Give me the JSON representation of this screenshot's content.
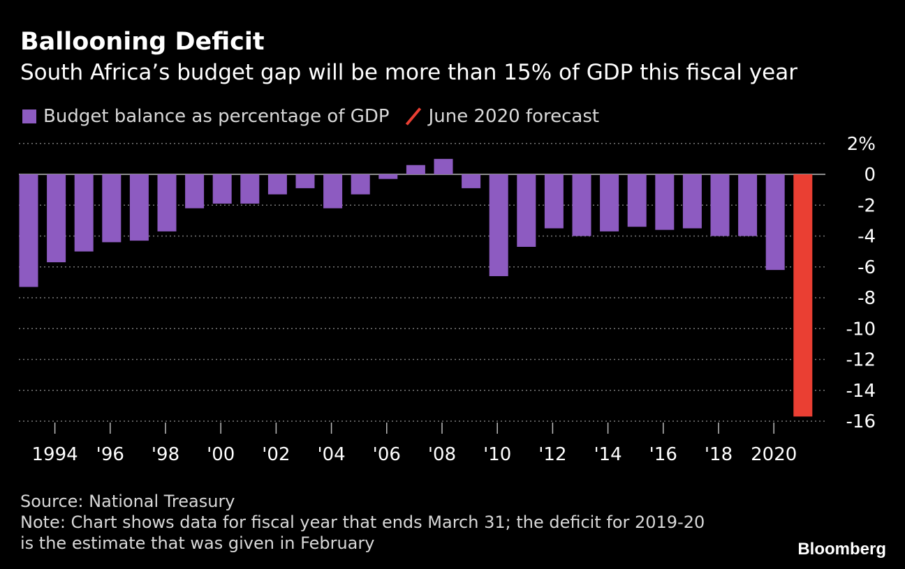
{
  "header": {
    "title": "Ballooning Deficit",
    "subtitle": "South Africa’s budget gap will be more than 15% of GDP this fiscal year"
  },
  "colors": {
    "background": "#000000",
    "budget_balance": "#8d5bc1",
    "forecast": "#ea3f33",
    "gridline": "#7a7a7a"
  },
  "footer": {
    "source": "Source: National Treasury",
    "note_line1": "Note: Chart shows data for fiscal year that ends March 31; the deficit for 2019-20",
    "note_line2": "is the estimate that was given in February"
  },
  "brand": "Bloomberg",
  "chart_data": {
    "type": "bar",
    "legend": [
      {
        "label": "Budget balance as percentage of GDP",
        "color": "#8d5bc1",
        "marker": "square"
      },
      {
        "label": "June 2020 forecast",
        "color": "#ea3f33",
        "marker": "slash"
      }
    ],
    "legend_position": "top-left",
    "categories": [
      1993,
      1994,
      1995,
      1996,
      1997,
      1998,
      1999,
      2000,
      2001,
      2002,
      2003,
      2004,
      2005,
      2006,
      2007,
      2008,
      2009,
      2010,
      2011,
      2012,
      2013,
      2014,
      2015,
      2016,
      2017,
      2018,
      2019,
      2020,
      2021
    ],
    "series": [
      {
        "name": "Budget balance as percentage of GDP",
        "color": "#8d5bc1",
        "values": [
          -7.3,
          -5.7,
          -5.0,
          -4.4,
          -4.3,
          -3.7,
          -2.2,
          -1.9,
          -1.9,
          -1.3,
          -0.9,
          -2.2,
          -1.3,
          -0.3,
          0.6,
          1.0,
          -0.9,
          -6.6,
          -4.7,
          -3.5,
          -4.0,
          -3.7,
          -3.4,
          -3.6,
          -3.5,
          -4.0,
          -4.0,
          -6.2,
          null
        ]
      },
      {
        "name": "June 2020 forecast",
        "color": "#ea3f33",
        "values": [
          null,
          null,
          null,
          null,
          null,
          null,
          null,
          null,
          null,
          null,
          null,
          null,
          null,
          null,
          null,
          null,
          null,
          null,
          null,
          null,
          null,
          null,
          null,
          null,
          null,
          null,
          null,
          null,
          -15.7
        ]
      }
    ],
    "x_tick_labels": [
      {
        "year": 1994,
        "label": "1994"
      },
      {
        "year": 1996,
        "label": "'96"
      },
      {
        "year": 1998,
        "label": "'98"
      },
      {
        "year": 2000,
        "label": "'00"
      },
      {
        "year": 2002,
        "label": "'02"
      },
      {
        "year": 2004,
        "label": "'04"
      },
      {
        "year": 2006,
        "label": "'06"
      },
      {
        "year": 2008,
        "label": "'08"
      },
      {
        "year": 2010,
        "label": "'10"
      },
      {
        "year": 2012,
        "label": "'12"
      },
      {
        "year": 2014,
        "label": "'14"
      },
      {
        "year": 2016,
        "label": "'16"
      },
      {
        "year": 2018,
        "label": "'18"
      },
      {
        "year": 2020,
        "label": "2020"
      }
    ],
    "y_ticks": [
      {
        "value": 2,
        "label": "2%"
      },
      {
        "value": 0,
        "label": "0"
      },
      {
        "value": -2,
        "label": "-2"
      },
      {
        "value": -4,
        "label": "-4"
      },
      {
        "value": -6,
        "label": "-6"
      },
      {
        "value": -8,
        "label": "-8"
      },
      {
        "value": -10,
        "label": "-10"
      },
      {
        "value": -12,
        "label": "-12"
      },
      {
        "value": -14,
        "label": "-14"
      },
      {
        "value": -16,
        "label": "-16"
      }
    ],
    "ylim": [
      -16,
      2
    ],
    "y_axis_side": "right",
    "grid": "dotted horizontal"
  }
}
